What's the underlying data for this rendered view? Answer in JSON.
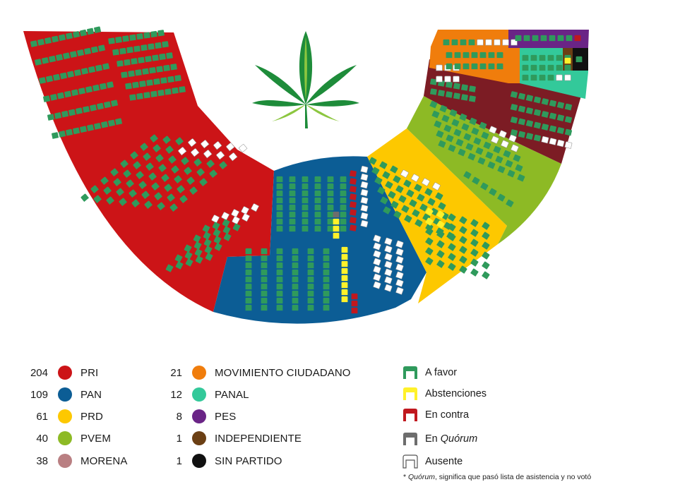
{
  "colors": {
    "PRI": "#cc1417",
    "PAN": "#0c5d95",
    "PRD": "#fdc800",
    "PVEM": "#8dba25",
    "MORENA": "#7c1c24",
    "MORENA_legend": "#b97f82",
    "MC": "#f07d0c",
    "PANAL": "#33c99a",
    "PES": "#6a2486",
    "INDEPENDIENTE": "#6b3f14",
    "SIN_PARTIDO": "#111111",
    "favor": "#2f9a5c",
    "abstencion": "#fff12a",
    "contra": "#c0181e",
    "quorum": "#6d6d6d",
    "ausente": "#ffffff"
  },
  "center_icon": "cannabis-leaf-icon",
  "parties": [
    {
      "count": "204",
      "name": "PRI",
      "color_key": "PRI"
    },
    {
      "count": "109",
      "name": "PAN",
      "color_key": "PAN"
    },
    {
      "count": "61",
      "name": "PRD",
      "color_key": "PRD"
    },
    {
      "count": "40",
      "name": "PVEM",
      "color_key": "PVEM"
    },
    {
      "count": "38",
      "name": "MORENA",
      "color_key": "MORENA_legend"
    },
    {
      "count": "21",
      "name": "MOVIMIENTO CIUDADANO",
      "color_key": "MC"
    },
    {
      "count": "12",
      "name": "PANAL",
      "color_key": "PANAL"
    },
    {
      "count": "8",
      "name": "PES",
      "color_key": "PES"
    },
    {
      "count": "1",
      "name": "INDEPENDIENTE",
      "color_key": "INDEPENDIENTE"
    },
    {
      "count": "1",
      "name": "SIN PARTIDO",
      "color_key": "SIN_PARTIDO"
    }
  ],
  "vote_legend": [
    {
      "key": "favor",
      "label": "A favor"
    },
    {
      "key": "abstencion",
      "label": "Abstenciones"
    },
    {
      "key": "contra",
      "label": "En contra"
    },
    {
      "key": "quorum",
      "label_prefix": "En ",
      "label_italic": "Quórum"
    },
    {
      "key": "ausente",
      "label": "Ausente"
    }
  ],
  "footnote": {
    "asterisk": "* ",
    "italic": "Quórum",
    "rest": ", significa que pasó lista de asistencia y no votó"
  }
}
